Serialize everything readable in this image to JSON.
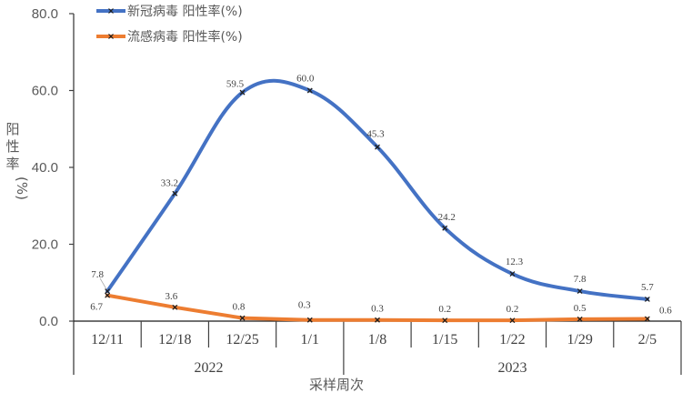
{
  "chart_data": {
    "type": "line",
    "title": "",
    "xlabel": "采样周次",
    "ylabel": "阳性率(%)",
    "ylim": [
      0,
      80
    ],
    "yticks": [
      "0.0",
      "20.0",
      "40.0",
      "60.0",
      "80.0"
    ],
    "grid": false,
    "legend_position": "top-left",
    "categories": [
      "12/11",
      "12/18",
      "12/25",
      "1/1",
      "1/8",
      "1/15",
      "1/22",
      "1/29",
      "2/5"
    ],
    "year_groups": [
      {
        "label": "2022",
        "span": [
          0,
          3
        ]
      },
      {
        "label": "2023",
        "span": [
          4,
          8
        ]
      }
    ],
    "series": [
      {
        "name": "新冠病毒 阳性率(%)",
        "color": "#4472C4",
        "smooth": true,
        "values": [
          7.8,
          33.2,
          59.5,
          60.0,
          45.3,
          24.2,
          12.3,
          7.8,
          5.7
        ]
      },
      {
        "name": "流感病毒 阳性率(%)",
        "color": "#ED7D31",
        "smooth": false,
        "values": [
          6.7,
          3.6,
          0.8,
          0.3,
          0.3,
          0.2,
          0.2,
          0.5,
          0.6
        ]
      }
    ]
  },
  "legend": {
    "items": [
      {
        "label": "新冠病毒 阳性率(%)",
        "color": "#4472C4"
      },
      {
        "label": "流感病毒 阳性率(%)",
        "color": "#ED7D31"
      }
    ]
  },
  "axis": {
    "y_title_chars": [
      "阳",
      "性",
      "率",
      "(%)"
    ],
    "x_title": "采样周次"
  }
}
